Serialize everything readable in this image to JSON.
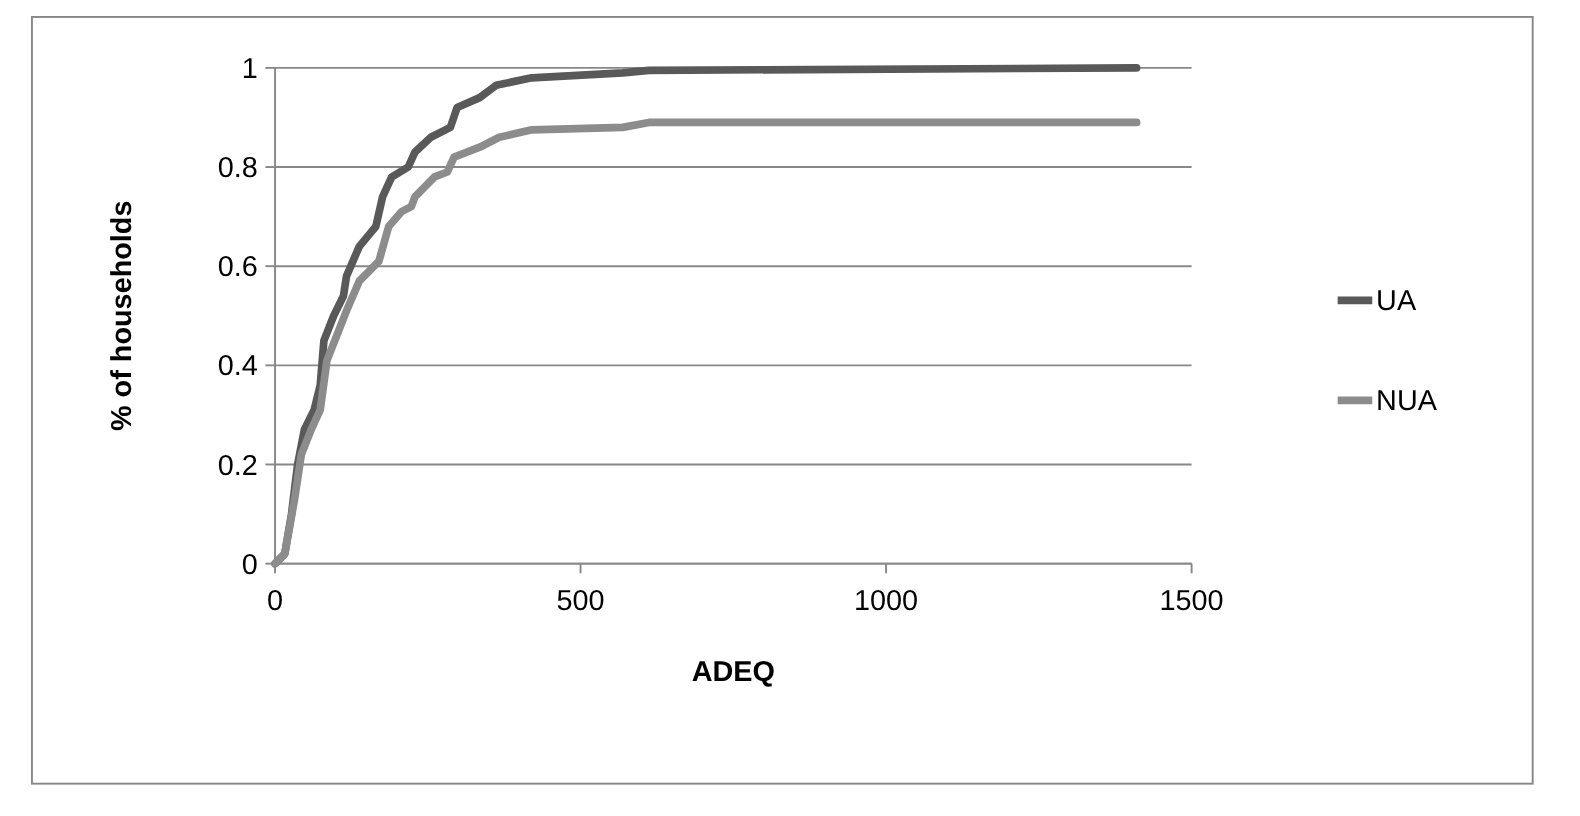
{
  "chart_data": {
    "type": "line",
    "xlabel": "ADEQ",
    "ylabel": "% of households",
    "xlim": [
      0,
      1500
    ],
    "xticks": [
      0,
      500,
      1000,
      1500
    ],
    "ylim": [
      0,
      1
    ],
    "yticks": [
      0,
      0.2,
      0.4,
      0.6,
      0.8,
      1
    ],
    "grid": "y",
    "legend": "right",
    "line_style": "solid",
    "series": [
      {
        "name": "UA",
        "color": "#595959",
        "x": [
          0,
          16,
          27,
          37,
          48,
          64,
          74,
          80,
          96,
          112,
          117,
          138,
          165,
          176,
          191,
          218,
          229,
          255,
          287,
          298,
          335,
          362,
          420,
          569,
          612,
          1410
        ],
        "values": [
          0,
          0.02,
          0.1,
          0.2,
          0.27,
          0.31,
          0.36,
          0.45,
          0.5,
          0.54,
          0.58,
          0.64,
          0.68,
          0.74,
          0.78,
          0.8,
          0.83,
          0.86,
          0.88,
          0.92,
          0.94,
          0.965,
          0.98,
          0.99,
          0.995,
          1
        ]
      },
      {
        "name": "NUA",
        "color": "#8c8c8c",
        "x": [
          0,
          16,
          32,
          43,
          59,
          74,
          85,
          101,
          117,
          138,
          170,
          186,
          207,
          223,
          229,
          261,
          282,
          293,
          335,
          367,
          420,
          569,
          612,
          1410
        ],
        "values": [
          0,
          0.02,
          0.13,
          0.22,
          0.27,
          0.31,
          0.41,
          0.46,
          0.51,
          0.57,
          0.61,
          0.68,
          0.71,
          0.72,
          0.74,
          0.78,
          0.79,
          0.82,
          0.84,
          0.86,
          0.875,
          0.88,
          0.89,
          0.89
        ]
      }
    ]
  }
}
